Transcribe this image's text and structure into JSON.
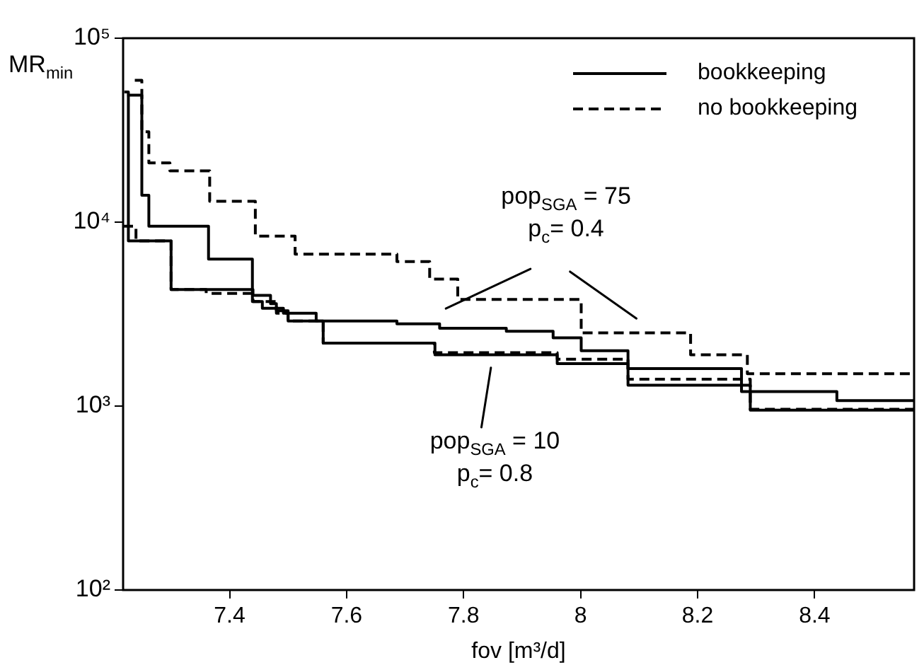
{
  "chart_data": {
    "type": "step",
    "xlabel": "fov [m³/d]",
    "ylabel": "MR$_{min}$",
    "log": "y",
    "legend": "top right",
    "grid": false,
    "xlim": [
      7.218,
      8.57
    ],
    "xticks": [
      7.4,
      7.6,
      7.8,
      8,
      8.2,
      8.4
    ],
    "ylim": [
      100,
      100000
    ],
    "yticks": [
      {
        "value": 100,
        "label": "10²"
      },
      {
        "value": 1000,
        "label": "10³"
      },
      {
        "value": 10000,
        "label": "10⁴"
      },
      {
        "value": 100000,
        "label": "10⁵"
      }
    ],
    "annotations": [
      "pop$_{SGA}$ = 75\np$_{c}$= 0.4",
      "pop$_{SGA}$ = 10\np$_{c}$= 0.8"
    ],
    "series": [
      {
        "name": "bookkeeping",
        "color": "#000000",
        "line_style": "solid",
        "x": [
          7.225,
          7.25,
          7.262,
          7.364,
          7.439,
          7.456,
          7.492,
          7.548,
          7.686,
          7.759,
          7.873,
          7.953,
          8.001,
          8.081,
          8.275,
          8.438,
          8.57
        ],
        "values": [
          49000,
          14000,
          9500,
          6300,
          3700,
          3400,
          3200,
          2900,
          2800,
          2650,
          2550,
          2350,
          2000,
          1600,
          1200,
          1070,
          1070
        ]
      },
      {
        "name": "no bookkeeping",
        "color": "#000000",
        "line_style": "dashed",
        "x": [
          7.238,
          7.25,
          7.262,
          7.298,
          7.366,
          7.444,
          7.512,
          7.686,
          7.742,
          7.79,
          8.001,
          8.188,
          8.285,
          8.57
        ],
        "values": [
          59000,
          31000,
          21000,
          19000,
          13000,
          8400,
          6700,
          6100,
          4900,
          3800,
          2500,
          1900,
          1500,
          1500
        ]
      },
      {
        "color": "#000000",
        "line_style": "solid",
        "x": [
          7.22,
          7.227,
          7.3,
          7.44,
          7.47,
          7.48,
          7.5,
          7.56,
          7.751,
          7.96,
          8.081,
          8.29,
          8.57
        ],
        "values": [
          51000,
          7900,
          4300,
          4000,
          3600,
          3300,
          2900,
          2200,
          1900,
          1700,
          1300,
          950,
          950
        ]
      },
      {
        "color": "#000000",
        "line_style": "dashed",
        "x": [
          7.218,
          7.24,
          7.3,
          7.36,
          7.44,
          7.48,
          7.5,
          7.56,
          7.75,
          7.96,
          8.081,
          8.29,
          8.57
        ],
        "values": [
          9500,
          7900,
          4300,
          4100,
          3700,
          3200,
          2900,
          2200,
          1950,
          1800,
          1400,
          960,
          960
        ]
      }
    ]
  }
}
